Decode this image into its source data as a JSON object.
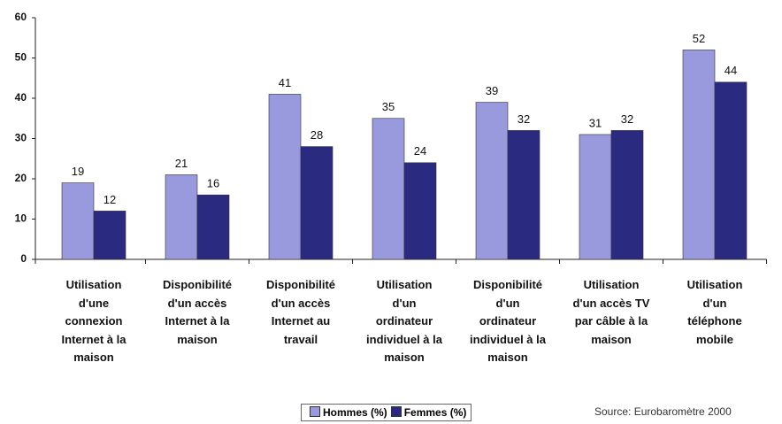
{
  "chart_data": {
    "type": "bar",
    "categories": [
      "Utilisation\nd'une\nconnexion\nInternet à la\nmaison",
      "Disponibilité\nd'un accès\nInternet à la\nmaison",
      "Disponibilité\nd'un accès\nInternet au\ntravail",
      "Utilisation\nd'un\nordinateur\nindividuel à la\nmaison",
      "Disponibilité\nd'un\nordinateur\nindividuel à la\nmaison",
      "Utilisation\nd'un accès TV\npar câble à la\nmaison",
      "Utilisation\nd'un\ntéléphone\nmobile"
    ],
    "series": [
      {
        "name": "Hommes (%)",
        "color": "#9999dd",
        "values": [
          19,
          21,
          41,
          35,
          39,
          31,
          52
        ]
      },
      {
        "name": "Femmes (%)",
        "color": "#2a2a80",
        "values": [
          12,
          16,
          28,
          24,
          32,
          32,
          44
        ]
      }
    ],
    "ylim": [
      0,
      60
    ],
    "yticks": [
      0,
      10,
      20,
      30,
      40,
      50,
      60
    ],
    "source": "Source: Eurobaromètre 2000"
  }
}
